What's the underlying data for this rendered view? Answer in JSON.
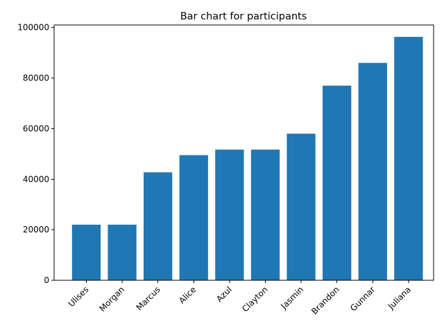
{
  "chart_data": {
    "type": "bar",
    "title": "Bar chart for participants",
    "xlabel": "",
    "ylabel": "",
    "categories": [
      "Ulises",
      "Morgan",
      "Marcus",
      "Alice",
      "Azul",
      "Clayton",
      "Jasmin",
      "Brandon",
      "Gunnar",
      "Juliana"
    ],
    "values": [
      22000,
      22000,
      42700,
      49500,
      51700,
      51700,
      58000,
      77000,
      86000,
      96300
    ],
    "ylim": [
      0,
      101000
    ],
    "yticks": [
      0,
      20000,
      40000,
      60000,
      80000,
      100000
    ],
    "ytick_labels": [
      "0",
      "20000",
      "40000",
      "60000",
      "80000",
      "100000"
    ],
    "xtick_rotation": 45,
    "bar_color": "#1f77b4",
    "grid": false,
    "legend": false
  }
}
